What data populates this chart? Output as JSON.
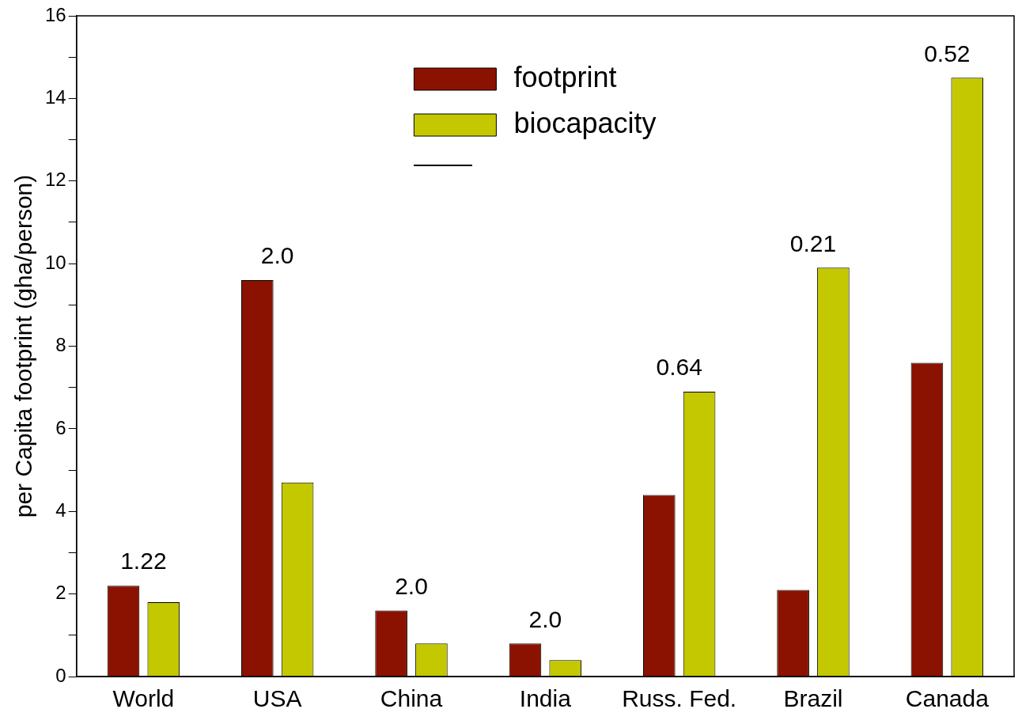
{
  "chart_data": {
    "type": "bar",
    "ylabel": "per Capita footprint (gha/person)",
    "categories": [
      "World",
      "USA",
      "China",
      "India",
      "Russ. Fed.",
      "Brazil",
      "Canada"
    ],
    "series": [
      {
        "name": "footprint",
        "color": "#8b1200",
        "values": [
          2.2,
          9.6,
          1.6,
          0.8,
          4.4,
          2.1,
          7.6
        ]
      },
      {
        "name": "biocapacity",
        "color": "#c3c800",
        "values": [
          1.8,
          4.7,
          0.8,
          0.4,
          6.9,
          9.9,
          14.5
        ]
      }
    ],
    "ylim": [
      0,
      16
    ],
    "yticks": [
      0,
      {
        "value": 1,
        "label": null
      },
      2,
      {
        "value": 3,
        "label": null
      },
      4,
      {
        "value": 5,
        "label": null
      },
      6,
      {
        "value": 7,
        "label": null
      },
      8,
      {
        "value": 9,
        "label": null
      },
      10,
      {
        "value": 11,
        "label": null
      },
      12,
      {
        "value": 13,
        "label": null
      },
      14,
      {
        "value": 15,
        "label": null
      },
      16
    ],
    "annotations": [
      "1.22",
      "2.0",
      "2.0",
      "2.0",
      "0.64",
      "0.21",
      "0.52"
    ],
    "grid": false,
    "legend": "top"
  }
}
